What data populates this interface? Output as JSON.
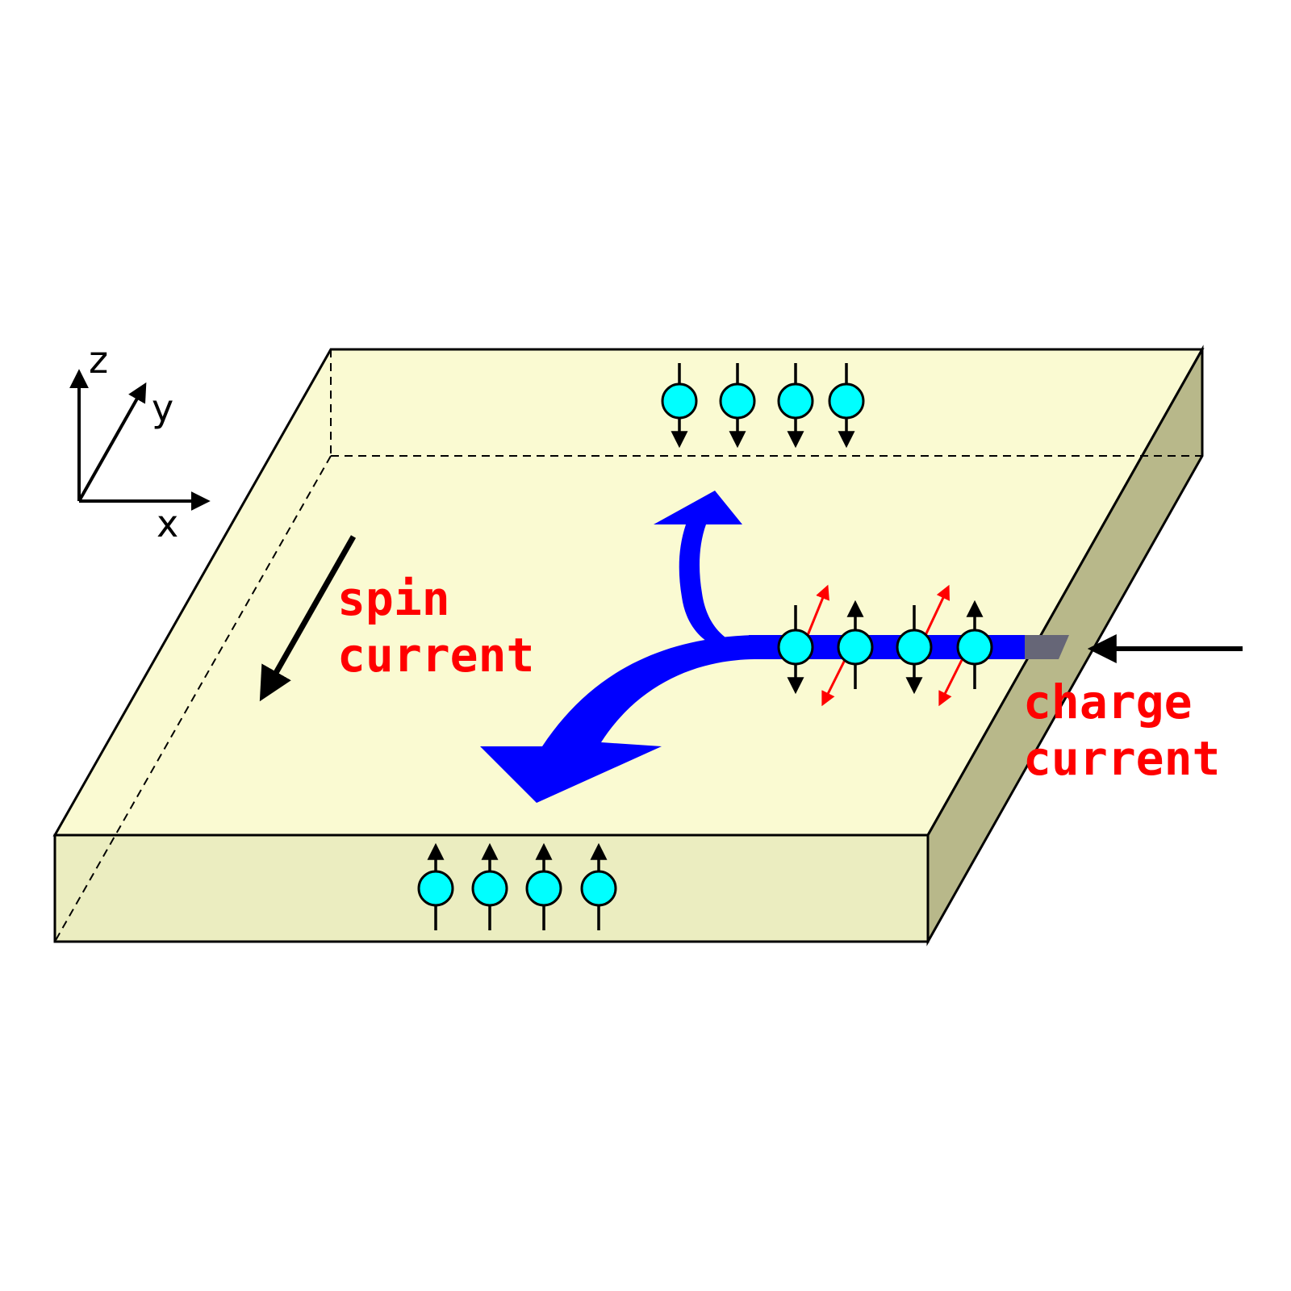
{
  "axes": {
    "z": "z",
    "y": "y",
    "x": "x"
  },
  "labels": {
    "spin_line1": "spin",
    "spin_line2": "current",
    "charge_line1": "charge",
    "charge_line2": "current"
  },
  "colors": {
    "slab_top": "#fafad2",
    "slab_front": "#ebedc0",
    "slab_side": "#b8b88a",
    "flow": "#0000ff",
    "electron": "#00ffff",
    "label": "#ff0000",
    "spin_precession": "#ff0000"
  },
  "electrons": {
    "top_edge": [
      "spin-down",
      "spin-down",
      "spin-down",
      "spin-down"
    ],
    "front_edge": [
      "spin-up",
      "spin-up",
      "spin-up",
      "spin-up"
    ],
    "in_channel": [
      "spin-up-down",
      "spin-up-down",
      "spin-up-down",
      "spin-up-down"
    ]
  }
}
